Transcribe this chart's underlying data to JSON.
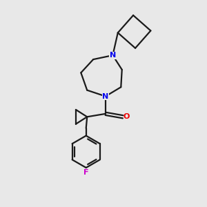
{
  "background_color": "#e8e8e8",
  "bond_color": "#1a1a1a",
  "N_color": "#0000ee",
  "O_color": "#ee0000",
  "F_color": "#cc00cc",
  "line_width": 1.6,
  "figsize": [
    3.0,
    3.0
  ],
  "dpi": 100,
  "xlim": [
    0.5,
    9.5
  ],
  "ylim": [
    0.5,
    10.5
  ]
}
